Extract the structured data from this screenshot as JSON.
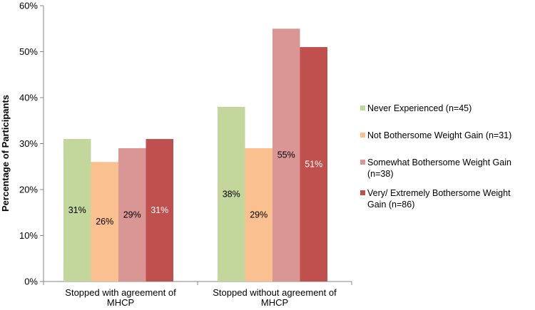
{
  "chart_data": {
    "type": "bar",
    "categories": [
      "Stopped with agreement of MHCP",
      "Stopped without agreement of MHCP"
    ],
    "category_lines": [
      [
        "Stopped with agreement of",
        "MHCP"
      ],
      [
        "Stopped without agreement of",
        "MHCP"
      ]
    ],
    "series": [
      {
        "name": "Never Experienced (n=45)",
        "color": "#c3d69b",
        "values": [
          31,
          38
        ],
        "labels": [
          "31%",
          "38%"
        ],
        "label_color": "#000000"
      },
      {
        "name": "Not Bothersome Weight Gain (n=31)",
        "color": "#fac090",
        "values": [
          26,
          29
        ],
        "labels": [
          "26%",
          "29%"
        ],
        "label_color": "#000000"
      },
      {
        "name": "Somewhat Bothersome Weight Gain (n=38)",
        "color": "#d99694",
        "values": [
          29,
          55
        ],
        "labels": [
          "29%",
          "55%"
        ],
        "label_color": "#000000"
      },
      {
        "name": "Very/ Extremely Bothersome Weight Gain (n=86)",
        "color": "#c0504d",
        "values": [
          31,
          51
        ],
        "labels": [
          "31%",
          "51%"
        ],
        "label_color": "#ffffff"
      }
    ],
    "ylabel": "Percentage of Participants",
    "ylim": [
      0,
      60
    ],
    "yticks": [
      "0%",
      "10%",
      "20%",
      "30%",
      "40%",
      "50%",
      "60%"
    ],
    "grid": false,
    "legend_position": "right"
  },
  "legend": {
    "items": [
      {
        "lines": [
          "Never Experienced (n=45)"
        ],
        "color": "#c3d69b"
      },
      {
        "lines": [
          "Not Bothersome Weight Gain (n=31)"
        ],
        "color": "#fac090"
      },
      {
        "lines": [
          "Somewhat Bothersome Weight Gain",
          "(n=38)"
        ],
        "color": "#d99694"
      },
      {
        "lines": [
          "Very/ Extremely Bothersome Weight",
          "Gain (n=86)"
        ],
        "color": "#c0504d"
      }
    ]
  }
}
